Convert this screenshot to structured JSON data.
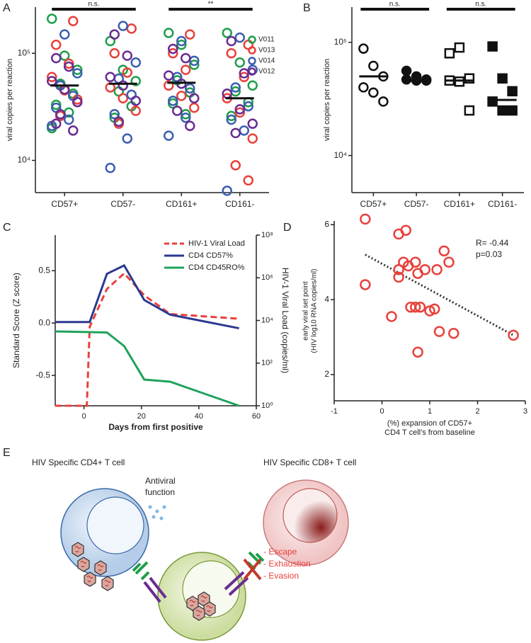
{
  "chart_data": [
    {
      "type": "strip",
      "panel": "A",
      "ylabel": "viral copies per reaction",
      "categories": [
        "CD57+",
        "CD57-",
        "CD161+",
        "CD161-"
      ],
      "yscale": "log",
      "ylim": [
        5000,
        270000
      ],
      "yticks": [
        {
          "value": 10000,
          "label": "10⁴"
        },
        {
          "value": 100000,
          "label": "10⁵"
        }
      ],
      "series": [
        {
          "name": "V011",
          "color": "#1f9e4a",
          "values": [
            [
              210000,
              95000,
              70000,
              52000,
              42000,
              33000,
              28000,
              20000
            ],
            [
              130000,
              70000,
              55000,
              44000,
              32000,
              25000
            ],
            [
              155000,
              120000,
              78000,
              56000,
              43000,
              34000,
              27000
            ],
            [
              155000,
              82000,
              50000,
              44000,
              35000,
              26000
            ]
          ]
        },
        {
          "name": "V013",
          "color": "#e8413c",
          "values": [
            [
              200000,
              120000,
              80000,
              60000,
              45000,
              37000,
              26000
            ],
            [
              170000,
              100000,
              66000,
              48000,
              38000,
              29000,
              22000
            ],
            [
              150000,
              100000,
              70000,
              50000,
              40000,
              31000
            ],
            [
              120000,
              100000,
              60000,
              38000,
              28000,
              16000,
              9000,
              6500
            ]
          ]
        },
        {
          "name": "V014",
          "color": "#3a5fb0",
          "values": [
            [
              150000,
              65000,
              50000,
              40000,
              31000,
              24000,
              21000
            ],
            [
              180000,
              82000,
              58000,
              41000,
              27000,
              16000,
              8500
            ],
            [
              130000,
              85000,
              60000,
              47000,
              36000,
              25000,
              17000
            ],
            [
              140000,
              70000,
              48000,
              32000,
              24000,
              19000,
              5200
            ]
          ]
        },
        {
          "name": "V012",
          "color": "#6a2c91",
          "values": [
            [
              90000,
              75000,
              55000,
              46000,
              35000,
              27000,
              19000,
              22000
            ],
            [
              150000,
              95000,
              60000,
              50000,
              36000,
              23000
            ],
            [
              110000,
              90000,
              62000,
              52000,
              38000,
              29000,
              21000
            ],
            [
              130000,
              65000,
              42000,
              30000,
              22000,
              18000
            ]
          ]
        }
      ],
      "medians": [
        50000,
        52000,
        53000,
        38000
      ],
      "annotations": [
        {
          "label": "n.s.",
          "groups": [
            "CD57+",
            "CD57-"
          ]
        },
        {
          "label": "**",
          "groups": [
            "CD161+",
            "CD161-"
          ]
        }
      ]
    },
    {
      "type": "strip",
      "panel": "B",
      "ylabel": "viral copies per reaction",
      "categories": [
        "CD57+",
        "CD57-",
        "CD161+",
        "CD161-"
      ],
      "yscale": "log",
      "ylim": [
        4700,
        205000
      ],
      "yticks": [
        {
          "value": 10000,
          "label": "10⁴"
        },
        {
          "value": 100000,
          "label": "10⁵"
        }
      ],
      "color": "#111111",
      "markers": [
        "circle-open",
        "circle-filled",
        "square-open",
        "square-filled"
      ],
      "values": [
        [
          88000,
          62000,
          50000,
          40000,
          36000,
          30000
        ],
        [
          56000,
          50000,
          47000,
          47000,
          46000,
          46000
        ],
        [
          80000,
          90000,
          48000,
          46000,
          45000,
          25000
        ],
        [
          92000,
          48000,
          37000,
          30000,
          25000,
          25000
        ]
      ],
      "medians": [
        50000,
        46000,
        46000,
        31000
      ],
      "annotations": [
        {
          "label": "n.s.",
          "groups": [
            "CD57+",
            "CD57-"
          ]
        },
        {
          "label": "n.s.",
          "groups": [
            "CD161+",
            "CD161-"
          ]
        }
      ]
    },
    {
      "type": "line",
      "panel": "C",
      "xlabel": "Days from first positive",
      "ylabel": "Standard Score (Z score)",
      "y2label": "HIV-1 Viral Load (copies/ml)",
      "xlim": [
        -10,
        60
      ],
      "xticks": [
        0,
        20,
        40,
        60
      ],
      "ylim": [
        -0.79,
        0.84
      ],
      "yticks": [
        -0.5,
        {
          "value": 0,
          "label": "0.0"
        },
        0.5
      ],
      "y2scale": "log",
      "y2lim": [
        1,
        100000000
      ],
      "y2ticks": [
        {
          "value": 1,
          "label": "10⁰"
        },
        {
          "value": 100,
          "label": "10²"
        },
        {
          "value": 10000,
          "label": "10⁴"
        },
        {
          "value": 1000000,
          "label": "10⁶"
        },
        {
          "value": 100000000,
          "label": "10⁸"
        }
      ],
      "legend": "upper right",
      "series": [
        {
          "name": "HIV-1 Viral Load",
          "color": "#e8413c",
          "axis": "y2",
          "linestyle": "dashed",
          "x": [
            -10,
            1,
            2,
            8,
            14,
            21,
            30,
            54
          ],
          "values": [
            1,
            1,
            5000,
            300000,
            1600000,
            150000,
            20000,
            12000
          ]
        },
        {
          "name": "CD4 CD57%",
          "color": "#2b3990",
          "linestyle": "solid",
          "x": [
            -10,
            2,
            8,
            14,
            21,
            30,
            54
          ],
          "values": [
            0.01,
            0.01,
            0.47,
            0.55,
            0.22,
            0.08,
            -0.05
          ]
        },
        {
          "name": "CD4 CD45RO%",
          "color": "#1fa35b",
          "linestyle": "solid",
          "x": [
            -10,
            8,
            14,
            21,
            30,
            54
          ],
          "values": [
            -0.08,
            -0.09,
            -0.22,
            -0.54,
            -0.56,
            -0.79
          ]
        }
      ]
    },
    {
      "type": "scatter",
      "panel": "D",
      "xlabel": [
        "(%) expansion of CD57+",
        "CD4 T cell's from baseline"
      ],
      "ylabel": [
        "early viral set point",
        "(HIV log10 RNA copies/ml)"
      ],
      "xlim": [
        -1,
        3
      ],
      "xticks": [
        -1,
        0,
        1,
        2,
        3
      ],
      "ylim": [
        1.3,
        6.1
      ],
      "yticks": [
        2,
        4,
        6
      ],
      "color": "#e8413c",
      "x": [
        -0.35,
        -0.35,
        0.2,
        0.35,
        0.35,
        0.35,
        0.5,
        0.45,
        0.55,
        0.6,
        0.7,
        0.7,
        0.75,
        0.75,
        0.8,
        0.9,
        1.0,
        1.1,
        1.15,
        1.2,
        1.3,
        1.4,
        1.5,
        2.75
      ],
      "values": [
        6.15,
        4.4,
        3.55,
        5.75,
        4.6,
        4.8,
        5.85,
        5.0,
        4.9,
        3.8,
        3.8,
        5.0,
        4.7,
        2.6,
        3.8,
        4.8,
        3.7,
        3.75,
        4.8,
        3.15,
        5.3,
        5.0,
        3.1,
        3.05
      ],
      "trendline": {
        "x": [
          -0.35,
          2.75
        ],
        "values": [
          5.2,
          3.05
        ]
      },
      "annotations": [
        "R= -0.44",
        "p=0.03"
      ]
    }
  ],
  "diagram": {
    "panel": "E",
    "cd4_label": "HIV Specific CD4+ T cell",
    "cd8_label": "HIV Specific CD8+ T cell",
    "antiviral": [
      "Antiviral",
      "function"
    ],
    "escape": [
      "- Escape",
      "- Exhaustion",
      "- Evasion"
    ]
  }
}
